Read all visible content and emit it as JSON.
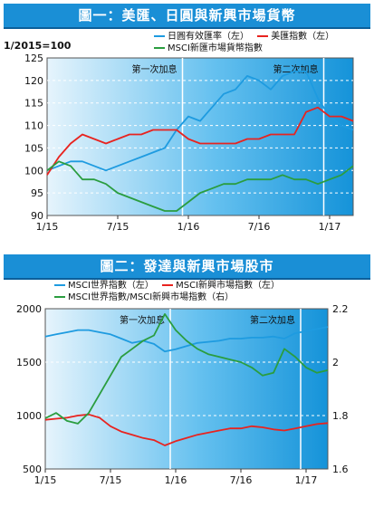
{
  "chart_data": [
    {
      "type": "line",
      "title": "圖一：美匯、日圓與新興市場貨幣",
      "base_note": "1/2015=100",
      "x_ticks": [
        "1/15",
        "7/15",
        "1/16",
        "7/16",
        "1/17"
      ],
      "ylim": [
        90,
        125
      ],
      "y_ticks": [
        90,
        95,
        100,
        105,
        110,
        115,
        120,
        125
      ],
      "grid": true,
      "legend": "top",
      "annotations": [
        "第一次加息",
        "第二次加息"
      ],
      "series": [
        {
          "name": "日圓有效匯率（左）",
          "color": "#1e9be0",
          "x": [
            0,
            1,
            2,
            3,
            4,
            5,
            6,
            7,
            8,
            9,
            10,
            11,
            12,
            13,
            14,
            15,
            16,
            17,
            18,
            19,
            20,
            21,
            22,
            23,
            24,
            25,
            26
          ],
          "y": [
            100,
            101,
            102,
            102,
            101,
            100,
            101,
            102,
            103,
            104,
            105,
            109,
            112,
            111,
            114,
            117,
            118,
            121,
            120,
            118,
            121,
            122,
            122,
            116,
            112,
            110,
            109
          ]
        },
        {
          "name": "美匯指數（左）",
          "color": "#e8231f",
          "x": [
            0,
            1,
            2,
            3,
            4,
            5,
            6,
            7,
            8,
            9,
            10,
            11,
            12,
            13,
            14,
            15,
            16,
            17,
            18,
            19,
            20,
            21,
            22,
            23,
            24,
            25,
            26
          ],
          "y": [
            99,
            103,
            106,
            108,
            107,
            106,
            107,
            108,
            108,
            109,
            109,
            109,
            107,
            106,
            106,
            106,
            106,
            107,
            107,
            108,
            108,
            108,
            113,
            114,
            112,
            112,
            111
          ]
        },
        {
          "name": "MSCI新匯市場貨幣指數",
          "color": "#2a9d3f",
          "x": [
            0,
            1,
            2,
            3,
            4,
            5,
            6,
            7,
            8,
            9,
            10,
            11,
            12,
            13,
            14,
            15,
            16,
            17,
            18,
            19,
            20,
            21,
            22,
            23,
            24,
            25,
            26
          ],
          "y": [
            100,
            102,
            101,
            98,
            98,
            97,
            95,
            94,
            93,
            92,
            91,
            91,
            93,
            95,
            96,
            97,
            97,
            98,
            98,
            98,
            99,
            98,
            98,
            97,
            98,
            99,
            101
          ]
        }
      ]
    },
    {
      "type": "line",
      "title": "圖二：發達與新興市場股市",
      "x_ticks": [
        "1/15",
        "7/15",
        "1/16",
        "7/16",
        "1/17"
      ],
      "ylim": [
        500,
        2000
      ],
      "y_ticks": [
        500,
        1000,
        1500,
        2000
      ],
      "y2lim": [
        1.6,
        2.2
      ],
      "y2_ticks": [
        1.6,
        1.8,
        2.0,
        2.2
      ],
      "grid": true,
      "legend": "top",
      "annotations": [
        "第一次加息",
        "第二次加息"
      ],
      "series": [
        {
          "name": "MSCI世界指數（左）",
          "color": "#1e9be0",
          "axis": "left",
          "x": [
            0,
            1,
            2,
            3,
            4,
            5,
            6,
            7,
            8,
            9,
            10,
            11,
            12,
            13,
            14,
            15,
            16,
            17,
            18,
            19,
            20,
            21,
            22,
            23,
            24,
            25,
            26
          ],
          "y": [
            1740,
            1760,
            1780,
            1800,
            1800,
            1780,
            1760,
            1720,
            1680,
            1700,
            1670,
            1600,
            1620,
            1650,
            1680,
            1690,
            1700,
            1720,
            1720,
            1730,
            1730,
            1740,
            1720,
            1770,
            1790,
            1810,
            1830
          ]
        },
        {
          "name": "MSCI新興市場指數（左）",
          "color": "#e8231f",
          "axis": "left",
          "x": [
            0,
            1,
            2,
            3,
            4,
            5,
            6,
            7,
            8,
            9,
            10,
            11,
            12,
            13,
            14,
            15,
            16,
            17,
            18,
            19,
            20,
            21,
            22,
            23,
            24,
            25,
            26
          ],
          "y": [
            960,
            970,
            980,
            1000,
            1010,
            980,
            900,
            850,
            820,
            790,
            770,
            720,
            760,
            790,
            820,
            840,
            860,
            880,
            880,
            900,
            890,
            870,
            860,
            880,
            900,
            920,
            930
          ]
        },
        {
          "name": "MSCI世界指數/MSCI新興市場指數（右）",
          "color": "#2a9d3f",
          "axis": "right",
          "x": [
            0,
            1,
            2,
            3,
            4,
            5,
            6,
            7,
            8,
            9,
            10,
            11,
            12,
            13,
            14,
            15,
            16,
            17,
            18,
            19,
            20,
            21,
            22,
            23,
            24,
            25,
            26
          ],
          "y": [
            1.79,
            1.81,
            1.78,
            1.77,
            1.81,
            1.88,
            1.95,
            2.02,
            2.05,
            2.08,
            2.1,
            2.18,
            2.12,
            2.08,
            2.05,
            2.03,
            2.02,
            2.01,
            2.0,
            1.98,
            1.95,
            1.96,
            2.05,
            2.02,
            1.98,
            1.96,
            1.97
          ]
        }
      ]
    }
  ]
}
